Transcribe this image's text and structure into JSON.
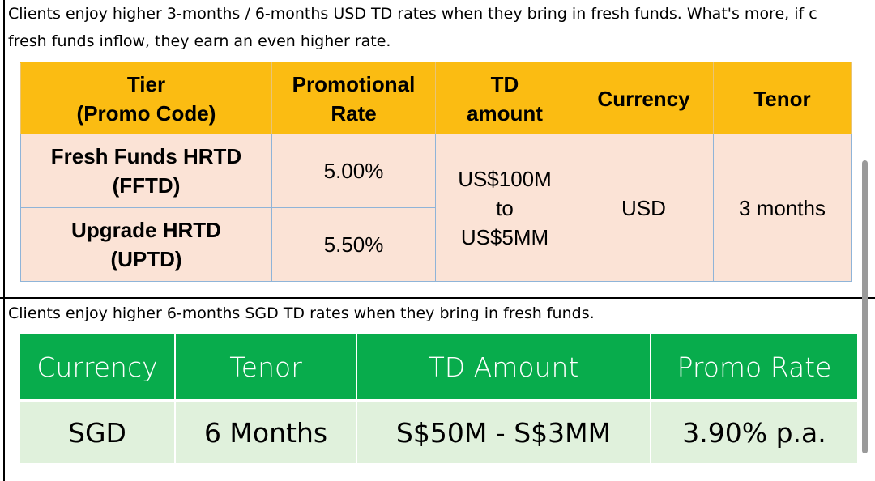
{
  "usd_section": {
    "note_lines": [
      "Clients enjoy higher 3-months /  6-months USD TD rates when they bring in fresh funds. What's more, if c",
      "fresh funds inflow, they earn an even higher rate."
    ],
    "table": {
      "headers": [
        "Tier\n(Promo Code)",
        "Promotional\nRate",
        "TD\namount",
        "Currency",
        "Tenor"
      ],
      "rows": [
        [
          "Fresh Funds HRTD\n(FFTD)",
          "5.00%",
          "US$100M\nto\nUS$5MM",
          "USD",
          "3 months"
        ],
        [
          "Upgrade HRTD\n(UPTD)",
          "5.50%"
        ]
      ]
    }
  },
  "sgd_section": {
    "note": "Clients enjoy higher 6-months SGD TD rates when they bring in fresh funds.",
    "table": {
      "headers": [
        "Currency",
        "Tenor",
        "TD Amount",
        "Promo Rate"
      ],
      "rows": [
        [
          "SGD",
          "6 Months",
          "S$50M - S$3MM",
          "3.90% p.a."
        ]
      ]
    }
  }
}
